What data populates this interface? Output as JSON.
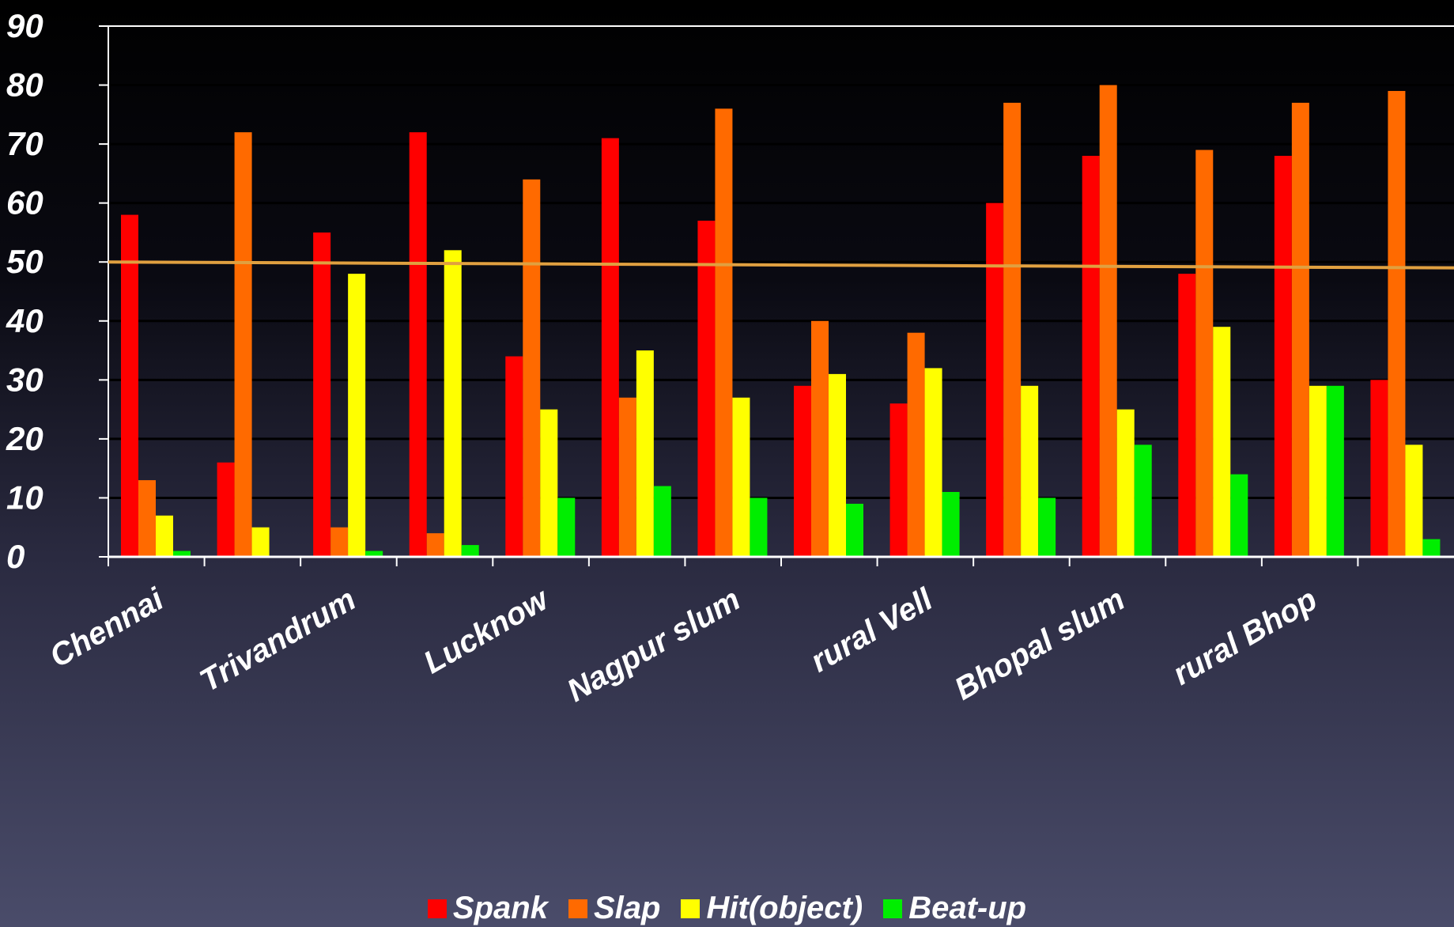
{
  "chart_data": {
    "type": "bar",
    "categories": [
      "Chennai",
      null,
      "Trivandrum",
      null,
      "Lucknow",
      null,
      "Nagpur slum",
      null,
      "rural Vell",
      null,
      "Bhopal slum",
      null,
      "rural Bhop",
      null
    ],
    "series": [
      {
        "name": "Spank",
        "color": "#ff0000",
        "values": [
          58,
          16,
          55,
          72,
          34,
          71,
          57,
          29,
          26,
          60,
          68,
          48,
          68,
          30
        ]
      },
      {
        "name": "Slap",
        "color": "#ff6a00",
        "values": [
          13,
          72,
          5,
          4,
          64,
          27,
          76,
          40,
          38,
          77,
          80,
          69,
          77,
          79
        ]
      },
      {
        "name": "Hit(object)",
        "color": "#ffff00",
        "values": [
          7,
          5,
          48,
          52,
          25,
          35,
          27,
          31,
          32,
          29,
          25,
          39,
          29,
          19
        ]
      },
      {
        "name": "Beat-up",
        "color": "#00ee00",
        "values": [
          1,
          0,
          1,
          2,
          10,
          12,
          10,
          9,
          11,
          10,
          19,
          14,
          29,
          3
        ]
      }
    ],
    "reference_line": {
      "start": 50,
      "end": 49,
      "color": "#e0a040"
    },
    "ylim": [
      0,
      90
    ],
    "yticks": [
      0,
      10,
      20,
      30,
      40,
      50,
      60,
      70,
      80,
      90
    ],
    "grid": true
  }
}
